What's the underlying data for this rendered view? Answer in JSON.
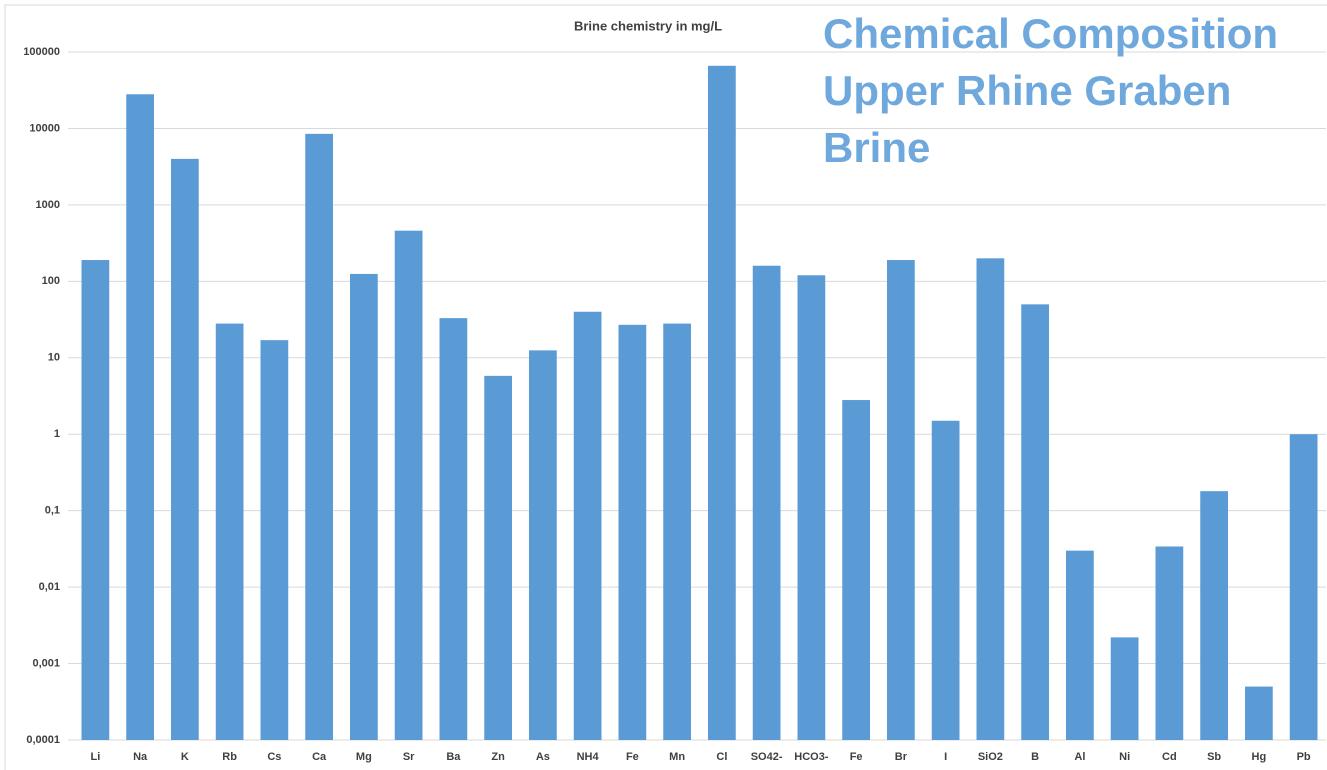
{
  "chart_data": {
    "type": "bar",
    "title": "Brine chemistry in mg/L",
    "annotation": [
      "Chemical Composition",
      "Upper Rhine Graben",
      "Brine"
    ],
    "categories": [
      "Li",
      "Na",
      "K",
      "Rb",
      "Cs",
      "Ca",
      "Mg",
      "Sr",
      "Ba",
      "Zn",
      "As",
      "NH4",
      "Fe",
      "Mn",
      "Cl",
      "SO42-",
      "HCO3-",
      "Fe",
      "Br",
      "I",
      "SiO2",
      "B",
      "Al",
      "Ni",
      "Cd",
      "Sb",
      "Hg",
      "Pb"
    ],
    "values": [
      190,
      28000,
      4000,
      28,
      17,
      8500,
      125,
      460,
      33,
      5.8,
      12.5,
      40,
      27,
      28,
      66000,
      160,
      120,
      2.8,
      190,
      1.5,
      200,
      50,
      0.03,
      0.0022,
      0.034,
      0.18,
      0.0005,
      1
    ],
    "color": "#5b9bd5",
    "log_scale": true,
    "ylim": [
      0.0001,
      100000
    ],
    "yticks": [
      {
        "value": 0.0001,
        "label": "0,0001"
      },
      {
        "value": 0.001,
        "label": "0,001"
      },
      {
        "value": 0.01,
        "label": "0,01"
      },
      {
        "value": 0.1,
        "label": "0,1"
      },
      1,
      10,
      100,
      1000,
      10000,
      100000
    ],
    "grid": true
  }
}
